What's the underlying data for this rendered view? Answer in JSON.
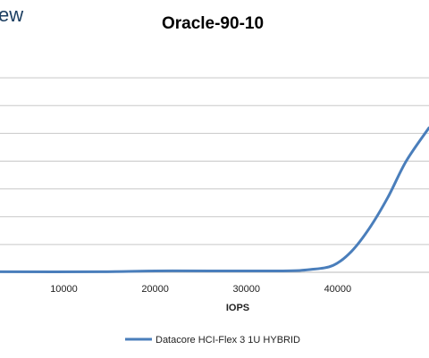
{
  "watermark": "ew",
  "chart_data": {
    "type": "line",
    "title": "Oracle-90-10",
    "xlabel": "IOPS",
    "ylabel": "",
    "x_ticks": [
      10000,
      20000,
      30000,
      40000
    ],
    "x_tick_labels": [
      "10000",
      "20000",
      "30000",
      "40000"
    ],
    "xlim": [
      3000,
      50000
    ],
    "ylim": [
      0,
      8
    ],
    "y_gridlines": [
      0,
      1,
      2,
      3,
      4,
      5,
      6,
      7
    ],
    "grid": true,
    "legend_position": "bottom",
    "series": [
      {
        "name": "Datacore HCI-Flex 3 1U HYBRID",
        "color": "#4a7ebb",
        "points": [
          {
            "x": 3000,
            "y": 0.02
          },
          {
            "x": 14000,
            "y": 0.02
          },
          {
            "x": 20000,
            "y": 0.05
          },
          {
            "x": 26000,
            "y": 0.05
          },
          {
            "x": 34000,
            "y": 0.05
          },
          {
            "x": 37000,
            "y": 0.1
          },
          {
            "x": 39500,
            "y": 0.25
          },
          {
            "x": 41500,
            "y": 0.75
          },
          {
            "x": 43500,
            "y": 1.6
          },
          {
            "x": 45500,
            "y": 2.7
          },
          {
            "x": 47500,
            "y": 4.0
          },
          {
            "x": 50000,
            "y": 5.2
          }
        ]
      }
    ]
  }
}
